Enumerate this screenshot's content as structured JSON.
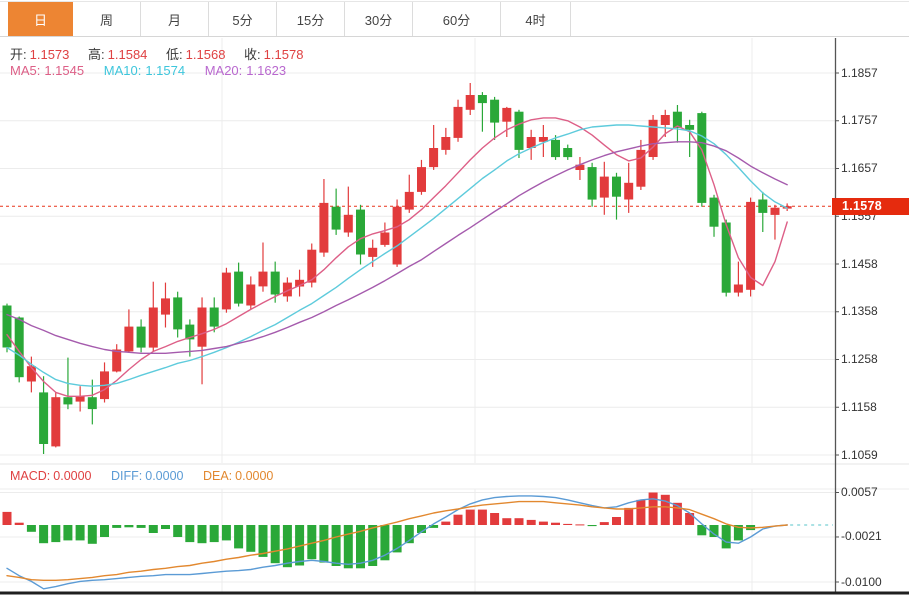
{
  "tabs": [
    {
      "label": "日",
      "active": true
    },
    {
      "label": "周",
      "active": false
    },
    {
      "label": "月",
      "active": false
    },
    {
      "label": "5分",
      "active": false
    },
    {
      "label": "15分",
      "active": false
    },
    {
      "label": "30分",
      "active": false
    },
    {
      "label": "60分",
      "active": false
    },
    {
      "label": "4时",
      "active": false
    }
  ],
  "ohlc": [
    {
      "label": "开:",
      "value": "1.1573"
    },
    {
      "label": "高:",
      "value": "1.1584"
    },
    {
      "label": "低:",
      "value": "1.1568"
    },
    {
      "label": "收:",
      "value": "1.1578"
    }
  ],
  "ma_header": [
    {
      "label": "MA5:",
      "value": "1.1545",
      "color": "#dd5f87"
    },
    {
      "label": "MA10:",
      "value": "1.1574",
      "color": "#3ec6dc"
    },
    {
      "label": "MA20:",
      "value": "1.1623",
      "color": "#b968cf"
    }
  ],
  "macd_header": [
    {
      "label": "MACD:",
      "value": "0.0000",
      "color": "#df4142"
    },
    {
      "label": "DIFF:",
      "value": "0.0000",
      "color": "#5b9bd5"
    },
    {
      "label": "DEA:",
      "value": "0.0000",
      "color": "#e2882f"
    }
  ],
  "price_marker": {
    "value": "1.1578",
    "bg": "#e52b0e",
    "text_color": "#ffffff"
  },
  "colors": {
    "up": "#e23b3c",
    "down": "#2aa838",
    "ma5": "#dd5f87",
    "ma10": "#5ecbdc",
    "ma20": "#a55bad",
    "diff": "#5b9bd5",
    "dea": "#e2882f",
    "grid": "#ececec",
    "axis_line": "#555555",
    "axis_text": "#333333",
    "tab_active_bg": "#ed8533",
    "dotted_line": "#e8331a",
    "zero_dash": "#8fd8dc",
    "bottom_border": "#1f1f1f"
  },
  "chart_data": [
    {
      "type": "candlestick",
      "title": "daily candlestick panel with MA5/MA10/MA20 overlays",
      "legend_position": "top-left",
      "grid": true,
      "y_axis": {
        "tick_labels": [
          "1.1857",
          "1.1757",
          "1.1657",
          "1.1557",
          "1.1458",
          "1.1358",
          "1.1258",
          "1.1158",
          "1.1059"
        ],
        "range": [
          1.1042,
          1.193
        ]
      },
      "last_price": 1.1578,
      "ohlc_last": {
        "open": 1.1573,
        "high": 1.1584,
        "low": 1.1568,
        "close": 1.1578
      },
      "candles": [
        [
          1.137,
          1.1374,
          1.1272,
          1.1282
        ],
        [
          1.1345,
          1.1347,
          1.1209,
          1.122
        ],
        [
          1.1211,
          1.1263,
          1.1188,
          1.1243
        ],
        [
          1.1188,
          1.1222,
          1.1059,
          1.108
        ],
        [
          1.1075,
          1.1188,
          1.1073,
          1.1178
        ],
        [
          1.1178,
          1.1261,
          1.1153,
          1.1163
        ],
        [
          1.1169,
          1.1201,
          1.1148,
          1.118
        ],
        [
          1.1178,
          1.1215,
          1.1121,
          1.1153
        ],
        [
          1.1174,
          1.1251,
          1.1167,
          1.1232
        ],
        [
          1.1232,
          1.1289,
          1.123,
          1.1278
        ],
        [
          1.1274,
          1.1362,
          1.1272,
          1.1326
        ],
        [
          1.1326,
          1.1341,
          1.1272,
          1.1282
        ],
        [
          1.1282,
          1.142,
          1.1274,
          1.1366
        ],
        [
          1.1351,
          1.1418,
          1.1324,
          1.1385
        ],
        [
          1.1387,
          1.1399,
          1.1303,
          1.132
        ],
        [
          1.133,
          1.1341,
          1.1263,
          1.1299
        ],
        [
          1.1284,
          1.1387,
          1.1205,
          1.1366
        ],
        [
          1.1366,
          1.1387,
          1.1314,
          1.1326
        ],
        [
          1.1362,
          1.1449,
          1.1355,
          1.1439
        ],
        [
          1.1441,
          1.146,
          1.1368,
          1.1374
        ],
        [
          1.137,
          1.1431,
          1.1362,
          1.1414
        ],
        [
          1.141,
          1.1502,
          1.1399,
          1.1441
        ],
        [
          1.1441,
          1.1462,
          1.1376,
          1.1393
        ],
        [
          1.1389,
          1.1429,
          1.1378,
          1.1418
        ],
        [
          1.141,
          1.1445,
          1.1389,
          1.1424
        ],
        [
          1.1418,
          1.15,
          1.1408,
          1.1487
        ],
        [
          1.1481,
          1.1635,
          1.1472,
          1.1585
        ],
        [
          1.1577,
          1.1615,
          1.1518,
          1.1529
        ],
        [
          1.1523,
          1.1619,
          1.1514,
          1.156
        ],
        [
          1.1571,
          1.1581,
          1.1456,
          1.1477
        ],
        [
          1.1472,
          1.1508,
          1.1451,
          1.1491
        ],
        [
          1.1497,
          1.1544,
          1.1493,
          1.1523
        ],
        [
          1.1456,
          1.1592,
          1.1451,
          1.1577
        ],
        [
          1.1571,
          1.1644,
          1.1564,
          1.1608
        ],
        [
          1.1608,
          1.1675,
          1.1602,
          1.166
        ],
        [
          1.166,
          1.1748,
          1.1654,
          1.17
        ],
        [
          1.1696,
          1.1742,
          1.1686,
          1.1723
        ],
        [
          1.1721,
          1.1801,
          1.1713,
          1.1786
        ],
        [
          1.178,
          1.1836,
          1.1769,
          1.1811
        ],
        [
          1.1811,
          1.1817,
          1.1734,
          1.1794
        ],
        [
          1.1801,
          1.1807,
          1.1717,
          1.1753
        ],
        [
          1.1755,
          1.1786,
          1.1723,
          1.1784
        ],
        [
          1.1776,
          1.178,
          1.1679,
          1.1696
        ],
        [
          1.17,
          1.1738,
          1.1675,
          1.1723
        ],
        [
          1.1713,
          1.1748,
          1.1681,
          1.1723
        ],
        [
          1.1717,
          1.1727,
          1.1675,
          1.1681
        ],
        [
          1.17,
          1.1707,
          1.1675,
          1.1681
        ],
        [
          1.1654,
          1.1681,
          1.1633,
          1.1665
        ],
        [
          1.166,
          1.1669,
          1.1577,
          1.1592
        ],
        [
          1.1596,
          1.1671,
          1.156,
          1.164
        ],
        [
          1.164,
          1.1648,
          1.155,
          1.1598
        ],
        [
          1.1592,
          1.1669,
          1.1564,
          1.1627
        ],
        [
          1.1619,
          1.1717,
          1.1612,
          1.1696
        ],
        [
          1.1681,
          1.1769,
          1.1675,
          1.1759
        ],
        [
          1.1748,
          1.178,
          1.1723,
          1.1769
        ],
        [
          1.1776,
          1.179,
          1.1711,
          1.1742
        ],
        [
          1.1748,
          1.1759,
          1.1681,
          1.1738
        ],
        [
          1.1773,
          1.1776,
          1.1577,
          1.1585
        ],
        [
          1.1596,
          1.1602,
          1.1514,
          1.1535
        ],
        [
          1.1544,
          1.155,
          1.1389,
          1.1397
        ],
        [
          1.1397,
          1.1462,
          1.1389,
          1.1414
        ],
        [
          1.1403,
          1.1596,
          1.1389,
          1.1587
        ],
        [
          1.1592,
          1.1608,
          1.1524,
          1.1564
        ],
        [
          1.156,
          1.1581,
          1.1508,
          1.1575
        ],
        [
          1.1573,
          1.1584,
          1.1568,
          1.1578
        ]
      ],
      "series": [
        {
          "name": "MA5",
          "color": "#dd5f87",
          "values": [
            1.1309,
            1.1274,
            1.124,
            1.1211,
            1.1188,
            1.118,
            1.118,
            1.1182,
            1.1194,
            1.1213,
            1.1236,
            1.1257,
            1.1274,
            1.1284,
            1.1295,
            1.1303,
            1.1311,
            1.132,
            1.1332,
            1.1347,
            1.1362,
            1.1376,
            1.1389,
            1.1401,
            1.1412,
            1.1424,
            1.1445,
            1.147,
            1.1493,
            1.151,
            1.152,
            1.1527,
            1.1535,
            1.155,
            1.1571,
            1.1596,
            1.1621,
            1.1648,
            1.1675,
            1.17,
            1.1721,
            1.1738,
            1.175,
            1.1759,
            1.1763,
            1.1763,
            1.1757,
            1.1744,
            1.1727,
            1.1706,
            1.1686,
            1.1673,
            1.1679,
            1.1702,
            1.173,
            1.1746,
            1.1734,
            1.1696,
            1.1623,
            1.1539,
            1.147,
            1.1429,
            1.1412,
            1.1462,
            1.1545
          ]
        },
        {
          "name": "MA10",
          "color": "#5ecbdc",
          "values": [
            1.1282,
            1.1266,
            1.1247,
            1.123,
            1.1215,
            1.1207,
            1.1203,
            1.1201,
            1.1203,
            1.1207,
            1.1215,
            1.1224,
            1.1232,
            1.124,
            1.1249,
            1.1255,
            1.1263,
            1.1272,
            1.1282,
            1.1293,
            1.1305,
            1.1318,
            1.133,
            1.1345,
            1.136,
            1.1374,
            1.1391,
            1.1408,
            1.1427,
            1.1445,
            1.1462,
            1.1479,
            1.1495,
            1.1514,
            1.1533,
            1.1552,
            1.1573,
            1.1594,
            1.1615,
            1.1636,
            1.1654,
            1.1673,
            1.1688,
            1.17,
            1.1711,
            1.1721,
            1.1729,
            1.1738,
            1.1744,
            1.1746,
            1.1748,
            1.1748,
            1.1746,
            1.1744,
            1.1742,
            1.174,
            1.1736,
            1.1725,
            1.1709,
            1.1686,
            1.1659,
            1.1631,
            1.1606,
            1.1587,
            1.1574
          ]
        },
        {
          "name": "MA20",
          "color": "#a55bad",
          "values": [
            1.1351,
            1.1341,
            1.1328,
            1.1318,
            1.1307,
            1.1299,
            1.1291,
            1.1284,
            1.1278,
            1.1274,
            1.1272,
            1.127,
            1.127,
            1.127,
            1.1272,
            1.1274,
            1.1276,
            1.128,
            1.1284,
            1.1291,
            1.1297,
            1.1305,
            1.1314,
            1.1324,
            1.1335,
            1.1345,
            1.1357,
            1.137,
            1.1382,
            1.1395,
            1.1408,
            1.1422,
            1.1437,
            1.1452,
            1.1466,
            1.1483,
            1.15,
            1.1517,
            1.1533,
            1.155,
            1.1567,
            1.1583,
            1.16,
            1.1615,
            1.1629,
            1.1642,
            1.1654,
            1.1665,
            1.1675,
            1.1684,
            1.1692,
            1.1698,
            1.1704,
            1.1709,
            1.1711,
            1.1713,
            1.1713,
            1.1711,
            1.1704,
            1.1694,
            1.1679,
            1.1662,
            1.1648,
            1.1635,
            1.1623
          ]
        }
      ]
    },
    {
      "type": "bar",
      "title": "MACD histogram with DIFF/DEA lines",
      "y_axis": {
        "tick_labels": [
          "0.0057",
          "-0.0021",
          "-0.0100"
        ],
        "tick_values": [
          0.0057,
          -0.0021,
          -0.01
        ],
        "range": [
          -0.0118,
          0.0064
        ]
      },
      "bars": {
        "name": "MACD",
        "values": [
          0.0023,
          0.0004,
          -0.0012,
          -0.0032,
          -0.003,
          -0.0027,
          -0.0027,
          -0.0033,
          -0.0021,
          -0.0005,
          -0.0004,
          -0.0005,
          -0.0014,
          -0.0007,
          -0.0021,
          -0.003,
          -0.0032,
          -0.003,
          -0.0027,
          -0.0041,
          -0.0047,
          -0.0056,
          -0.0067,
          -0.0074,
          -0.0071,
          -0.006,
          -0.0066,
          -0.0072,
          -0.0076,
          -0.0076,
          -0.0072,
          -0.0062,
          -0.0048,
          -0.0032,
          -0.0014,
          -0.0005,
          0.0006,
          0.0018,
          0.0027,
          0.0027,
          0.0021,
          0.0012,
          0.0012,
          0.0009,
          0.0006,
          0.0004,
          0.0002,
          0.0001,
          -0.0002,
          0.0005,
          0.0014,
          0.003,
          0.0044,
          0.0057,
          0.0053,
          0.0039,
          0.0021,
          -0.0018,
          -0.0021,
          -0.0041,
          -0.0027,
          -0.0009,
          0.0,
          0.0,
          0.0
        ]
      },
      "lines": [
        {
          "name": "DIFF",
          "color": "#5b9bd5",
          "values": [
            -0.0076,
            -0.0089,
            -0.0099,
            -0.0112,
            -0.0108,
            -0.0103,
            -0.0099,
            -0.0097,
            -0.0096,
            -0.0094,
            -0.0092,
            -0.009,
            -0.0089,
            -0.0087,
            -0.0087,
            -0.0087,
            -0.0085,
            -0.0083,
            -0.0081,
            -0.008,
            -0.0078,
            -0.0074,
            -0.0071,
            -0.0067,
            -0.0064,
            -0.0062,
            -0.0064,
            -0.0067,
            -0.0069,
            -0.0067,
            -0.0062,
            -0.0053,
            -0.0041,
            -0.0027,
            -0.0012,
            0.0002,
            0.0014,
            0.0027,
            0.0037,
            0.0044,
            0.0048,
            0.005,
            0.0051,
            0.0051,
            0.005,
            0.0048,
            0.0044,
            0.0039,
            0.0034,
            0.003,
            0.0032,
            0.0039,
            0.0044,
            0.0046,
            0.0042,
            0.0034,
            0.0021,
            0.0002,
            -0.0016,
            -0.003,
            -0.0032,
            -0.0021,
            -0.0007,
            -0.0002,
            0.0
          ]
        },
        {
          "name": "DEA",
          "color": "#e2882f",
          "values": [
            -0.0089,
            -0.0092,
            -0.0096,
            -0.0097,
            -0.0097,
            -0.0096,
            -0.0094,
            -0.0092,
            -0.0089,
            -0.0087,
            -0.0083,
            -0.0081,
            -0.0078,
            -0.0076,
            -0.0073,
            -0.0071,
            -0.0067,
            -0.0064,
            -0.006,
            -0.0057,
            -0.0053,
            -0.005,
            -0.0046,
            -0.0042,
            -0.0037,
            -0.0032,
            -0.0027,
            -0.0021,
            -0.0016,
            -0.0011,
            -0.0005,
            0.0,
            0.0005,
            0.0011,
            0.0016,
            0.0021,
            0.0025,
            0.0028,
            0.0032,
            0.0035,
            0.0037,
            0.0039,
            0.0041,
            0.0041,
            0.0041,
            0.0039,
            0.0037,
            0.0035,
            0.0032,
            0.003,
            0.0028,
            0.0028,
            0.003,
            0.0032,
            0.0032,
            0.003,
            0.0027,
            0.0019,
            0.0011,
            0.0002,
            -0.0004,
            -0.0005,
            -0.0004,
            -0.0002,
            0.0
          ]
        }
      ]
    }
  ]
}
